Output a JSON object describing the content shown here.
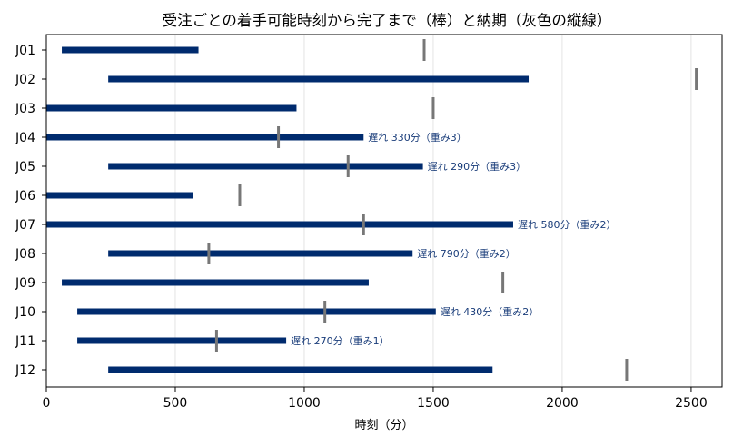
{
  "chart_data": {
    "type": "gantt",
    "title": "受注ごとの着手可能時刻から完了まで（棒）と納期（灰色の縦線）",
    "xlabel": "時刻（分）",
    "ylabel": "",
    "xlim": [
      0,
      2620
    ],
    "xticks": [
      0,
      500,
      1000,
      1500,
      2000,
      2500
    ],
    "x_tick_labels": [
      "0",
      "500",
      "1000",
      "1500",
      "2000",
      "2500"
    ],
    "grid": "vertical",
    "bar_color": "#002b6e",
    "due_color": "#777777",
    "annotation_color": "#1a3d7a",
    "jobs": [
      {
        "id": "J01",
        "start": 60,
        "end": 590,
        "due": 1465,
        "late_label": ""
      },
      {
        "id": "J02",
        "start": 240,
        "end": 1870,
        "due": 2520,
        "late_label": ""
      },
      {
        "id": "J03",
        "start": 0,
        "end": 970,
        "due": 1500,
        "late_label": ""
      },
      {
        "id": "J04",
        "start": 0,
        "end": 1230,
        "due": 900,
        "late_label": "遅れ 330分（重み3）"
      },
      {
        "id": "J05",
        "start": 240,
        "end": 1460,
        "due": 1170,
        "late_label": "遅れ 290分（重み3）"
      },
      {
        "id": "J06",
        "start": 0,
        "end": 570,
        "due": 750,
        "late_label": ""
      },
      {
        "id": "J07",
        "start": 0,
        "end": 1810,
        "due": 1230,
        "late_label": "遅れ 580分（重み2）"
      },
      {
        "id": "J08",
        "start": 240,
        "end": 1420,
        "due": 630,
        "late_label": "遅れ 790分（重み2）"
      },
      {
        "id": "J09",
        "start": 60,
        "end": 1250,
        "due": 1770,
        "late_label": ""
      },
      {
        "id": "J10",
        "start": 120,
        "end": 1510,
        "due": 1080,
        "late_label": "遅れ 430分（重み2）"
      },
      {
        "id": "J11",
        "start": 120,
        "end": 930,
        "due": 660,
        "late_label": "遅れ 270分（重み1）"
      },
      {
        "id": "J12",
        "start": 240,
        "end": 1730,
        "due": 2250,
        "late_label": ""
      }
    ]
  }
}
